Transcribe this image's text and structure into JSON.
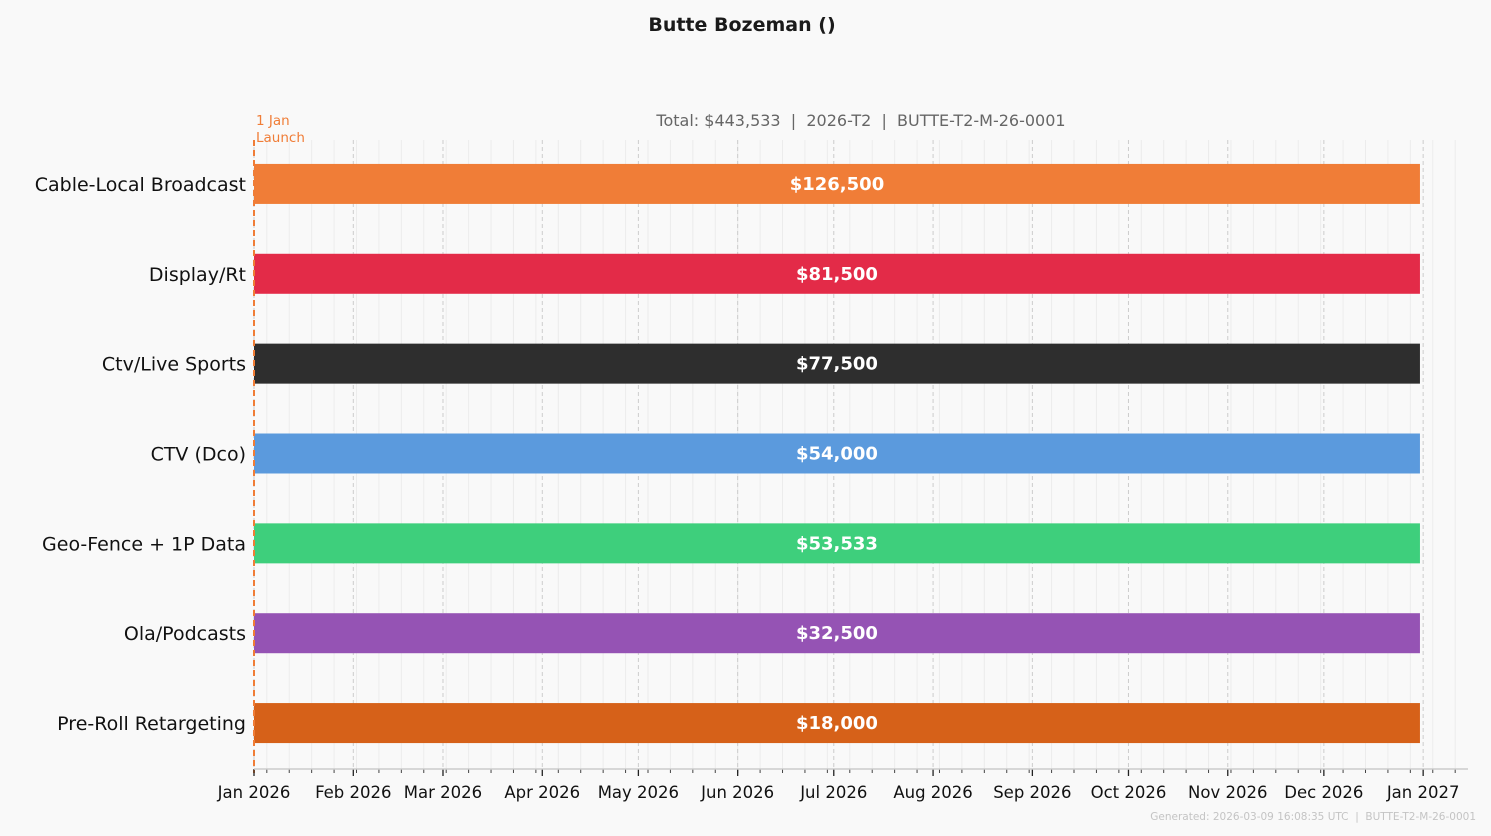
{
  "chart_data": {
    "type": "bar",
    "orientation": "horizontal-timeline",
    "title": "Butte Bozeman ()",
    "subtitle": "Total: $443,533  |  2026-T2  |  BUTTE-T2-M-26-0001",
    "categories": [
      "Cable-Local Broadcast",
      "Display/Rt",
      "Ctv/Live Sports",
      "CTV (Dco)",
      "Geo-Fence + 1P Data",
      "Ola/Podcasts",
      "Pre-Roll Retargeting"
    ],
    "values": [
      126500,
      81500,
      77500,
      54000,
      53533,
      32500,
      18000
    ],
    "value_labels": [
      "$126,500",
      "$81,500",
      "$77,500",
      "$54,000",
      "$53,533",
      "$32,500",
      "$18,000"
    ],
    "start": "2026-01-01",
    "end": "2026-12-31",
    "colors": [
      "#f07d37",
      "#e32b48",
      "#2e2e2e",
      "#5b9add",
      "#3ecf7c",
      "#9553b4",
      "#d66119"
    ],
    "xlim": [
      "2026-01-01",
      "2027-01-15"
    ],
    "ticks": [
      {
        "date": "2026-01-01",
        "label": "Jan 2026"
      },
      {
        "date": "2026-02-01",
        "label": "Feb 2026"
      },
      {
        "date": "2026-03-01",
        "label": "Mar 2026"
      },
      {
        "date": "2026-04-01",
        "label": "Apr 2026"
      },
      {
        "date": "2026-05-01",
        "label": "May 2026"
      },
      {
        "date": "2026-06-01",
        "label": "Jun 2026"
      },
      {
        "date": "2026-07-01",
        "label": "Jul 2026"
      },
      {
        "date": "2026-08-01",
        "label": "Aug 2026"
      },
      {
        "date": "2026-09-01",
        "label": "Sep 2026"
      },
      {
        "date": "2026-10-01",
        "label": "Oct 2026"
      },
      {
        "date": "2026-11-01",
        "label": "Nov 2026"
      },
      {
        "date": "2026-12-01",
        "label": "Dec 2026"
      },
      {
        "date": "2027-01-01",
        "label": "Jan 2027"
      }
    ],
    "launch_marker": {
      "date": "2026-01-01",
      "label_line1": "1 Jan",
      "label_line2": "Launch",
      "color": "#f07d37"
    },
    "grid": true,
    "footer": "Generated: 2026-03-09 16:08:35 UTC  |  BUTTE-T2-M-26-0001"
  }
}
